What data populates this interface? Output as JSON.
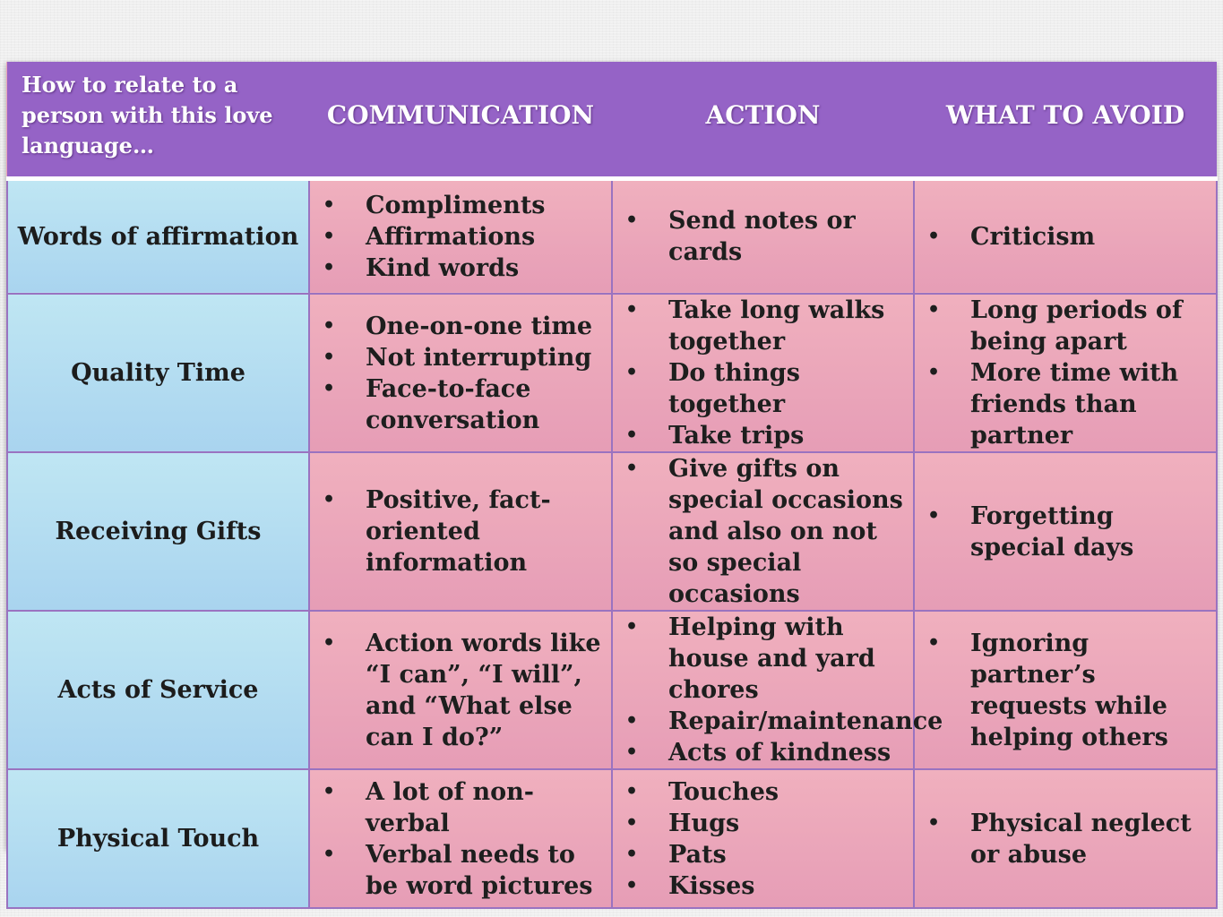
{
  "table": {
    "corner_header": "How to relate to a person with this love language…",
    "columns": [
      "COMMUNICATION",
      "ACTION",
      "WHAT TO AVOID"
    ],
    "rows": [
      {
        "label": "Words of affirmation",
        "communication": [
          "Compliments",
          "Affirmations",
          "Kind words"
        ],
        "action": [
          "Send notes or cards"
        ],
        "avoid": [
          "Criticism"
        ]
      },
      {
        "label": "Quality Time",
        "communication": [
          "One-on-one time",
          "Not interrupting",
          "Face-to-face conversation"
        ],
        "action": [
          "Take long walks together",
          "Do things together",
          "Take trips"
        ],
        "avoid": [
          "Long periods of being apart",
          "More time with friends than partner"
        ]
      },
      {
        "label": "Receiving Gifts",
        "communication": [
          "Positive, fact-oriented information"
        ],
        "action": [
          "Give gifts on special occasions and also on not so special occasions"
        ],
        "avoid": [
          "Forgetting special days"
        ]
      },
      {
        "label": "Acts of Service",
        "communication": [
          "Action words like “I can”, “I will”, and “What else can I do?”"
        ],
        "action": [
          "Helping with house and yard chores",
          "Repair/maintenance",
          "Acts of kindness"
        ],
        "avoid": [
          "Ignoring partner’s requests while helping others"
        ]
      },
      {
        "label": "Physical Touch",
        "communication": [
          "A lot of non-verbal",
          "Verbal needs to be word pictures"
        ],
        "action": [
          "Touches",
          "Hugs",
          "Pats",
          "Kisses"
        ],
        "avoid": [
          "Physical neglect or abuse"
        ]
      }
    ]
  },
  "colors": {
    "header_purple": "#9563c6",
    "row_label_blue": "#b5ddf1",
    "cell_pink": "#eba7ba",
    "grid_line": "#9a73c0"
  }
}
